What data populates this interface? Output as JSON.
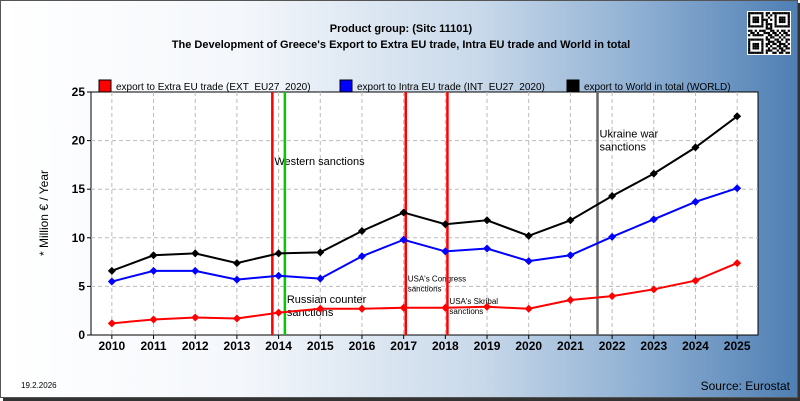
{
  "header": {
    "title_line1": "Product group:  (Sitc 11101)",
    "title_line2": "The Development of Greece's Export to Extra EU trade, Intra EU trade and World in total"
  },
  "footer": {
    "date": "19.2.2026",
    "source": "Source: Eurostat"
  },
  "chart_data": {
    "type": "line",
    "ylabel": "* Million € / Year",
    "xlabel": "",
    "ylim": [
      0,
      25
    ],
    "yticks": [
      0,
      5,
      10,
      15,
      20,
      25
    ],
    "categories": [
      "2010",
      "2011",
      "2012",
      "2013",
      "2014",
      "2015",
      "2016",
      "2017",
      "2018",
      "2019",
      "2020",
      "2021",
      "2022",
      "2023",
      "2024",
      "2025"
    ],
    "grid": true,
    "legend_position": "top",
    "series": [
      {
        "name": "export to Extra EU trade (EXT_EU27_2020)",
        "color": "#ff0000",
        "values": [
          1.2,
          1.6,
          1.8,
          1.7,
          2.3,
          2.7,
          2.7,
          2.8,
          2.8,
          2.9,
          2.7,
          3.6,
          4.0,
          4.7,
          5.6,
          7.4
        ]
      },
      {
        "name": "export to Intra EU trade (INT_EU27_2020)",
        "color": "#0000ff",
        "values": [
          5.5,
          6.6,
          6.6,
          5.7,
          6.1,
          5.8,
          8.1,
          9.8,
          8.6,
          8.9,
          7.6,
          8.2,
          10.1,
          11.9,
          13.7,
          15.1
        ]
      },
      {
        "name": "export to World in total (WORLD)",
        "color": "#000000",
        "values": [
          6.6,
          8.2,
          8.4,
          7.4,
          8.4,
          8.5,
          10.7,
          12.6,
          11.4,
          11.8,
          10.2,
          11.8,
          14.3,
          16.6,
          19.3,
          22.5
        ]
      }
    ],
    "annotations": [
      {
        "year": 2013.85,
        "color": "#ff0000",
        "label": "Western sanctions",
        "label_y": 17.5,
        "size": 11
      },
      {
        "year": 2014.15,
        "color": "#00cc00",
        "label": "Russian counter\nsanctions",
        "label_y": 3.3,
        "size": 11
      },
      {
        "year": 2017.05,
        "color": "#ff0000",
        "label": "USA's Congress\nsanctions",
        "label_y": 5.5,
        "size": 8
      },
      {
        "year": 2018.05,
        "color": "#ff0000",
        "label": "USA's Skribal\nsanctions",
        "label_y": 3.2,
        "size": 8
      },
      {
        "year": 2021.65,
        "color": "#666666",
        "label": "Ukraine war\nsanctions",
        "label_y": 20.3,
        "size": 11
      }
    ]
  }
}
